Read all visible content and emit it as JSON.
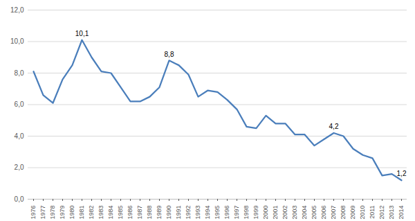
{
  "chart_data": {
    "type": "line",
    "color": "#4a7ebb",
    "grid": true,
    "categories": [
      "1976",
      "1977",
      "1978",
      "1979",
      "1980",
      "1981",
      "1982",
      "1983",
      "1984",
      "1985",
      "1986",
      "1987",
      "1988",
      "1989",
      "1990",
      "1991",
      "1992",
      "1993",
      "1994",
      "1995",
      "1996",
      "1997",
      "1998",
      "1999",
      "2000",
      "2001",
      "2002",
      "2003",
      "2004",
      "2005",
      "2006",
      "2007",
      "2008",
      "2009",
      "2010",
      "2011",
      "2012",
      "2013",
      "2014"
    ],
    "values": [
      8.1,
      6.6,
      6.1,
      7.6,
      8.5,
      10.1,
      9.0,
      8.1,
      8.0,
      7.1,
      6.2,
      6.2,
      6.5,
      7.1,
      8.8,
      8.5,
      7.9,
      6.5,
      6.9,
      6.8,
      6.3,
      5.7,
      4.6,
      4.5,
      5.3,
      4.8,
      4.8,
      4.1,
      4.1,
      3.4,
      3.8,
      4.2,
      4.0,
      3.2,
      2.8,
      2.6,
      1.5,
      1.6,
      1.2
    ],
    "value_labels": [
      null,
      null,
      null,
      null,
      null,
      "10,1",
      null,
      null,
      null,
      null,
      null,
      null,
      null,
      null,
      "8,8",
      null,
      null,
      null,
      null,
      null,
      null,
      null,
      null,
      null,
      null,
      null,
      null,
      null,
      null,
      null,
      null,
      "4,2",
      null,
      null,
      null,
      null,
      null,
      null,
      "1,2"
    ],
    "ylim": [
      0,
      12
    ],
    "yticks": [
      {
        "value": 0,
        "label": "0,0"
      },
      {
        "value": 2,
        "label": "2,0"
      },
      {
        "value": 4,
        "label": "4,0"
      },
      {
        "value": 6,
        "label": "6,0"
      },
      {
        "value": 8,
        "label": "8,0"
      },
      {
        "value": 10,
        "label": "10,0"
      },
      {
        "value": 12,
        "label": "12,0"
      }
    ]
  }
}
